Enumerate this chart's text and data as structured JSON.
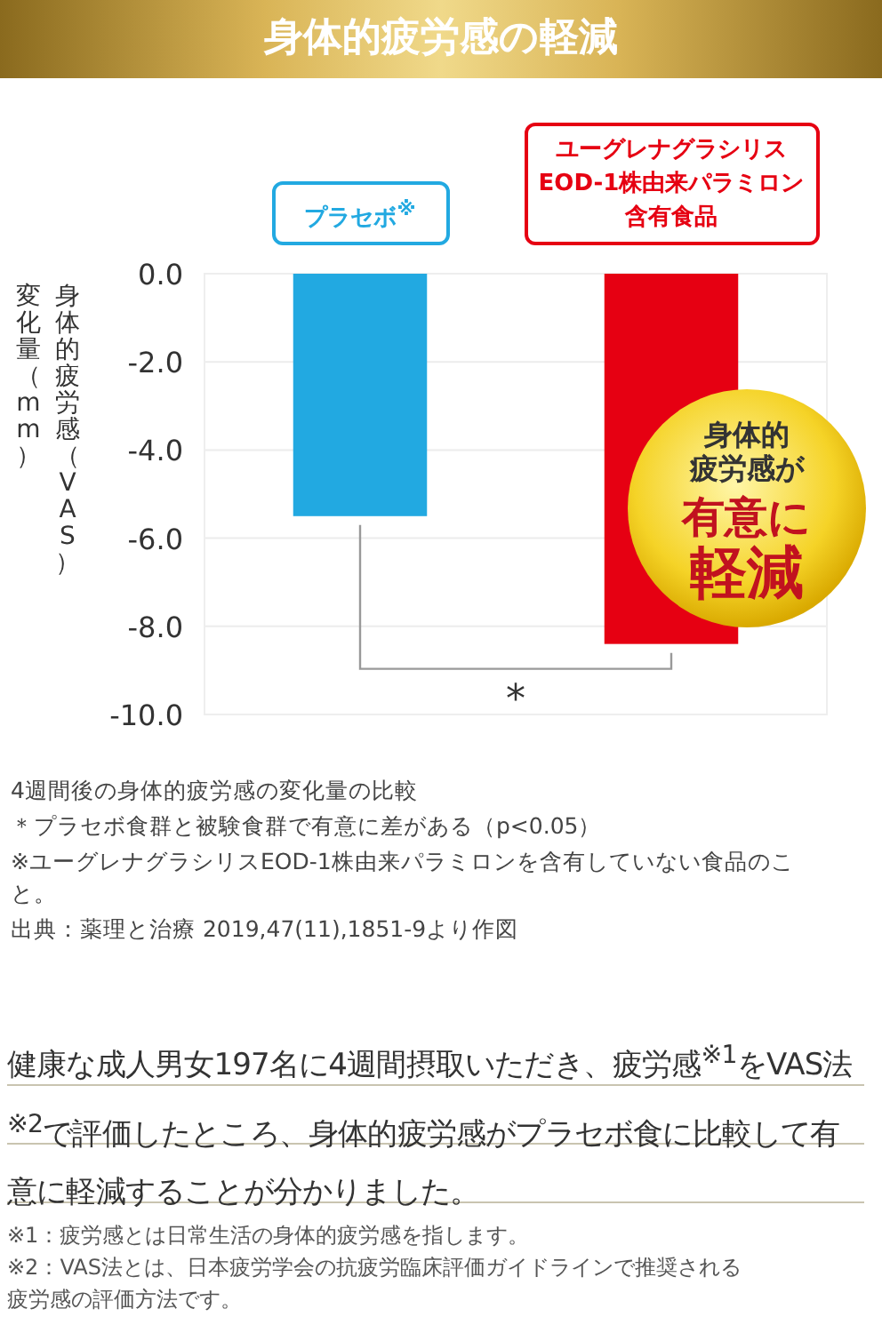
{
  "chart_data": {
    "type": "bar",
    "title": "身体的疲労感の軽減",
    "ylabel": "身体的疲労感（VAS）変化量（mm）",
    "categories": [
      "プラセボ$^{※}$",
      "ユーグレナグラシリスEOD-1株由来パラミロン含有食品"
    ],
    "values": [
      -5.5,
      -8.4
    ],
    "colors": [
      "#22a9e1",
      "#e60012"
    ],
    "ylim": [
      -10,
      0
    ],
    "yticks": [
      {
        "value": 0,
        "label": "0.0"
      },
      {
        "value": -2,
        "label": "-2.0"
      },
      {
        "value": -4,
        "label": "-4.0"
      },
      {
        "value": -6,
        "label": "-6.0"
      },
      {
        "value": -8,
        "label": "-8.0"
      },
      {
        "value": -10,
        "label": "-10.0"
      }
    ],
    "grid": "y",
    "annotations": [
      "*",
      "身体的",
      "疲労感が",
      "有意に",
      "軽減",
      "4週間後の身体的疲労感の変化量の比較",
      "＊プラセボ食群と被験食群で有意に差がある（p<0.05）",
      "※ユーグレナグラシリスEOD-1株由来パラミロンを含有していない食品のこと。",
      "出典：薬理と治療 2019,47(11),1851-9より作図",
      "健康な成人男女197名に4週間摂取いただき、疲労感$^{※1}$をVAS法$^{※2}$で評価したところ、身体的疲労感がプラセボ食に比較して有意に軽減することが分かりました。",
      "※1：疲労感とは日常生活の身体的疲労感を指します。",
      "※2：VAS法とは、日本疲労学会の抗疲労臨床評価ガイドラインで推奨される疲労感の評価方法です。"
    ]
  }
}
